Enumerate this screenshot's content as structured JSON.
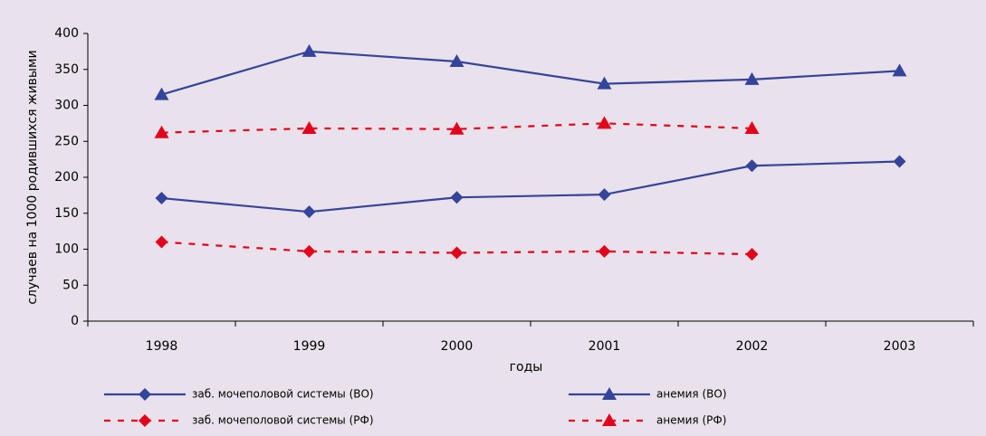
{
  "chart_data": {
    "type": "line",
    "x_label": "годы",
    "y_label": "случаев на 1000 родившихся живыми",
    "categories": [
      "1998",
      "1999",
      "2000",
      "2001",
      "2002",
      "2003"
    ],
    "series": [
      {
        "name": "заб. мочеполовой системы (ВО)",
        "color": "#34449a",
        "marker": "diamond",
        "dashed": false,
        "values": [
          171,
          152,
          172,
          176,
          216,
          222
        ]
      },
      {
        "name": "анемия (ВО)",
        "color": "#34449a",
        "marker": "triangle",
        "dashed": false,
        "values": [
          315,
          375,
          361,
          330,
          336,
          348
        ]
      },
      {
        "name": "заб. мочеполовой системы (РФ)",
        "color": "#e3001b",
        "marker": "diamond",
        "dashed": true,
        "values": [
          110,
          97,
          95,
          97,
          93,
          null
        ]
      },
      {
        "name": "анемия (РФ)",
        "color": "#e3001b",
        "marker": "triangle",
        "dashed": true,
        "values": [
          262,
          268,
          267,
          275,
          268,
          null
        ]
      }
    ],
    "ylim": [
      0,
      400
    ],
    "yticks": [
      0,
      50,
      100,
      150,
      200,
      250,
      300,
      350,
      400
    ]
  }
}
